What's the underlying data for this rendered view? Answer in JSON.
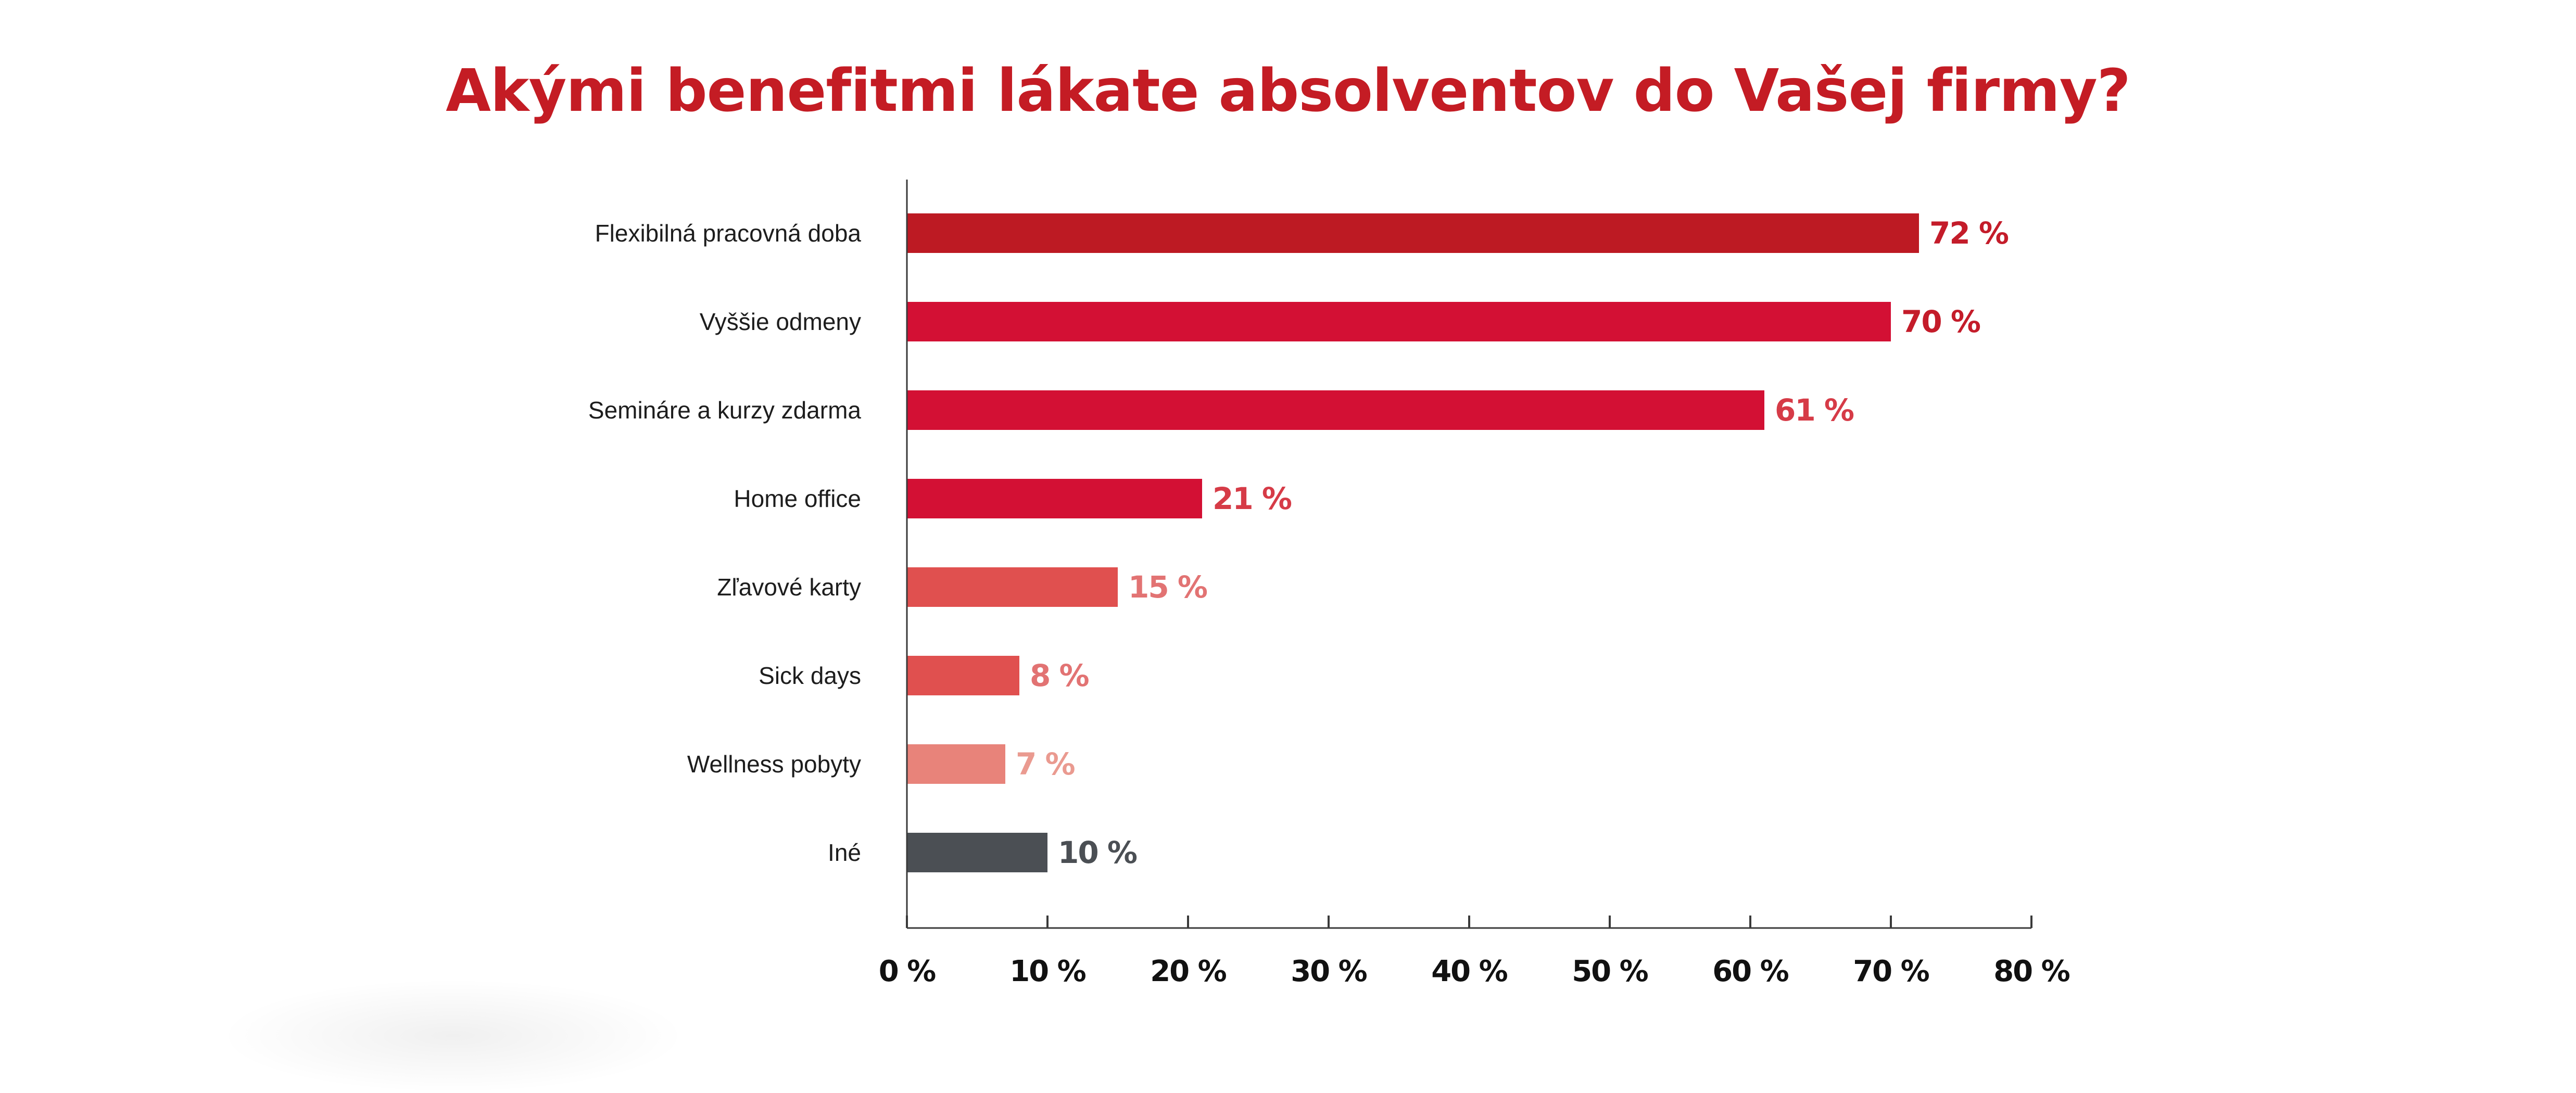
{
  "chart_data": {
    "type": "bar",
    "orientation": "horizontal",
    "title": "Akými benefitmi lákate absolventov do Vašej firmy?",
    "categories": [
      "Flexibilná pracovná doba",
      "Vyššie odmeny",
      "Semináre a kurzy zdarma",
      "Home office",
      "Zľavové karty",
      "Sick days",
      "Wellness pobyty",
      "Iné"
    ],
    "values": [
      72,
      70,
      61,
      21,
      15,
      8,
      7,
      10
    ],
    "value_labels": [
      "72 %",
      "70 %",
      "61 %",
      "21 %",
      "15 %",
      "8 %",
      "7 %",
      "10 %"
    ],
    "bar_colors": [
      "#BD1A23",
      "#D31034",
      "#D31034",
      "#D31034",
      "#E0504F",
      "#E0504F",
      "#E8837A",
      "#4B4F54"
    ],
    "label_colors": [
      "#C41C2A",
      "#C41C2A",
      "#D63B47",
      "#D63B47",
      "#E27373",
      "#E27373",
      "#EA9A90",
      "#4B4F54"
    ],
    "xlim": [
      0,
      80
    ],
    "xticks": [
      0,
      10,
      20,
      30,
      40,
      50,
      60,
      70,
      80
    ],
    "xtick_labels": [
      "0 %",
      "10 %",
      "20 %",
      "30 %",
      "40 %",
      "50 %",
      "60 %",
      "70 %",
      "80 %"
    ],
    "xlabel": "",
    "ylabel": "",
    "grid": false,
    "legend": "none",
    "title_color": "#C41C24"
  }
}
